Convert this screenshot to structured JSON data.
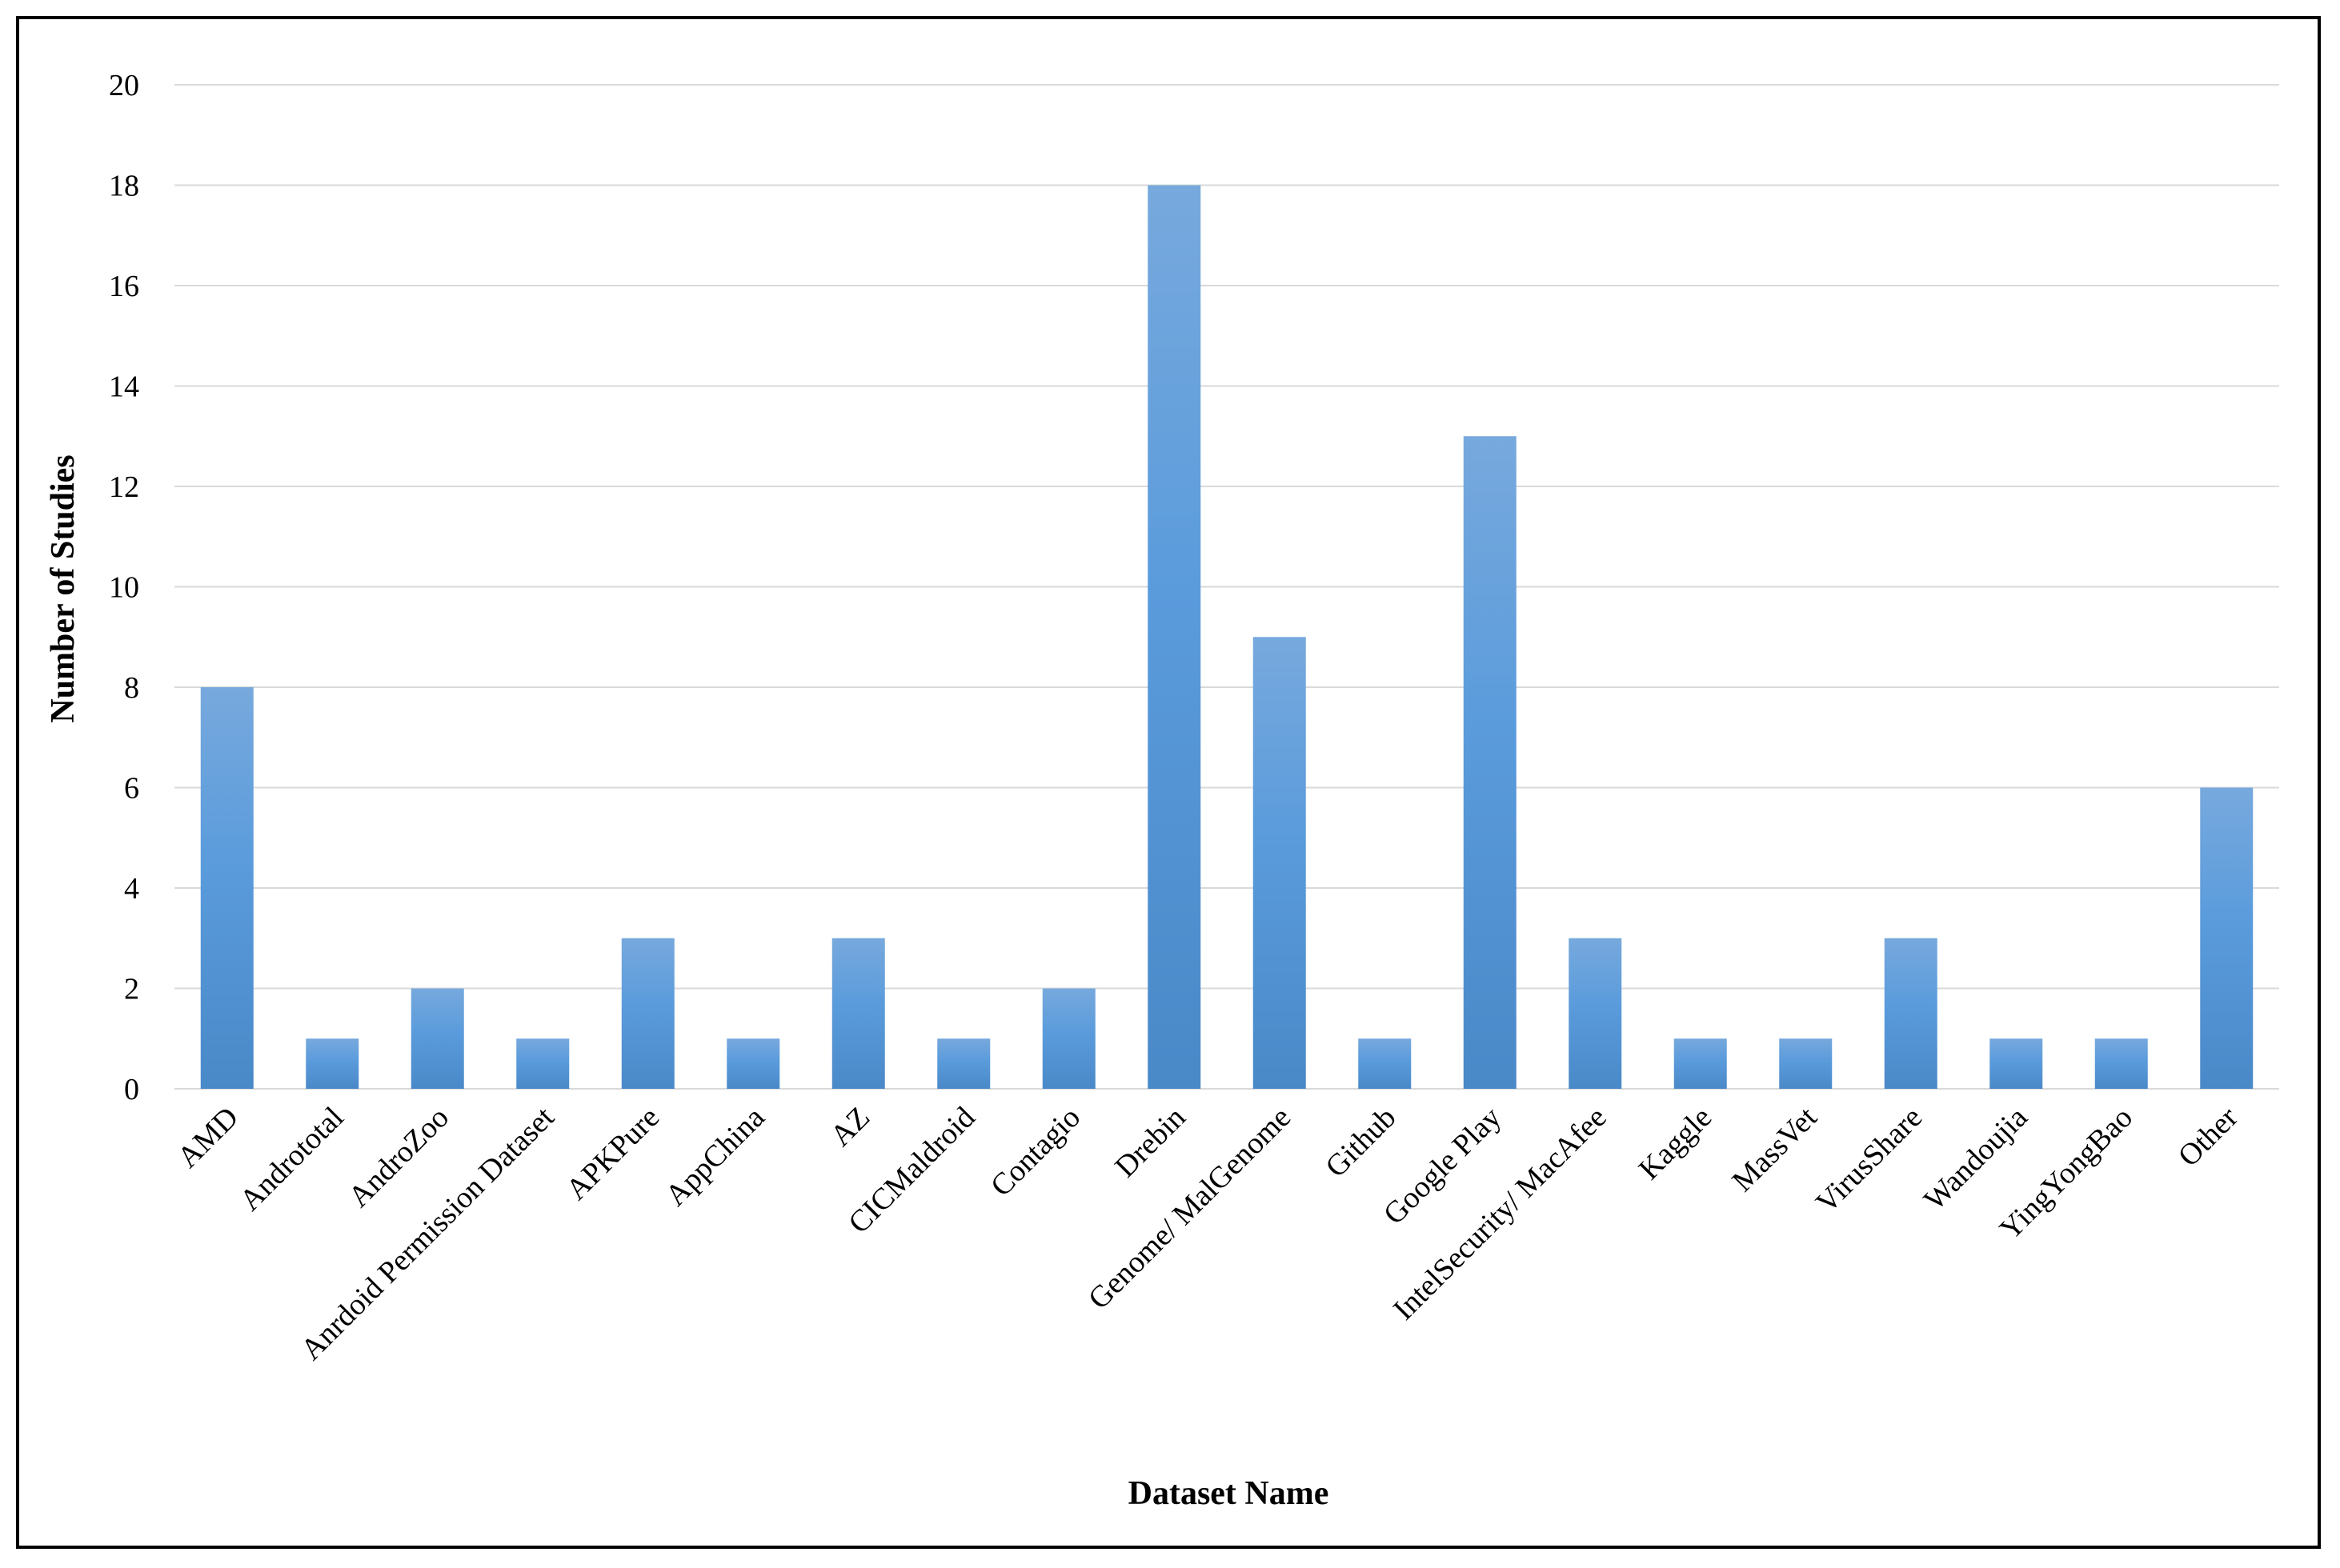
{
  "chart_data": {
    "type": "bar",
    "title": "",
    "xlabel": "Dataset Name",
    "ylabel": "Number of Studies",
    "ylim": [
      0,
      20
    ],
    "yticks": [
      0,
      2,
      4,
      6,
      8,
      10,
      12,
      14,
      16,
      18,
      20
    ],
    "grid": true,
    "legend": "none",
    "bar_color_top": "#77a9dd",
    "bar_color_mid": "#5a9bdc",
    "bar_color_bottom": "#4a89c8",
    "grid_color": "#d9d9d9",
    "categories": [
      "AMD",
      "Andrototal",
      "AndroZoo",
      "Anrdoid Permission Dataset",
      "APKPure",
      "AppChina",
      "AZ",
      "CICMaldroid",
      "Contagio",
      "Drebin",
      "Genome/ MalGenome",
      "Github",
      "Google Play",
      "IntelSecurity/ MacAfee",
      "Kaggle",
      "MassVet",
      "VirusShare",
      "Wandoujia",
      "YingYongBao",
      "Other"
    ],
    "values": [
      8,
      1,
      2,
      1,
      3,
      1,
      3,
      1,
      2,
      18,
      9,
      1,
      13,
      3,
      1,
      1,
      3,
      1,
      1,
      6
    ]
  }
}
